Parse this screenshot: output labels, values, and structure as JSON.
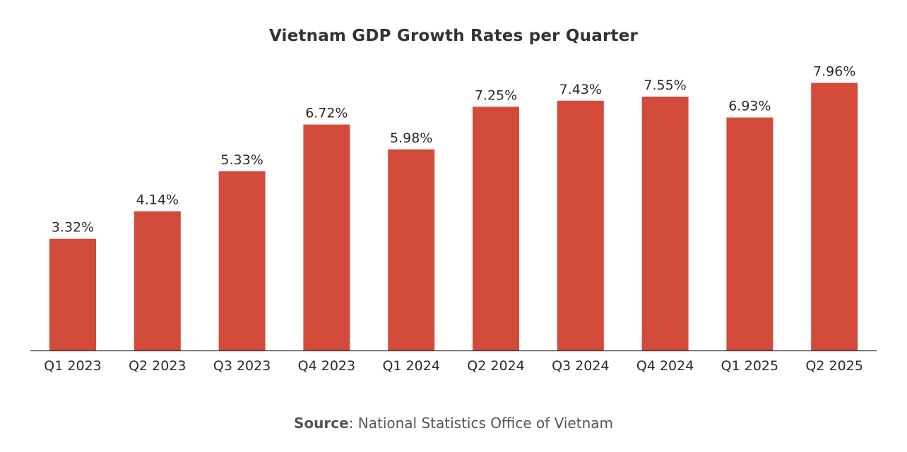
{
  "chart_data": {
    "type": "bar",
    "title": "Vietnam GDP Growth Rates per Quarter",
    "categories": [
      "Q1 2023",
      "Q2 2023",
      "Q3 2023",
      "Q4 2023",
      "Q1 2024",
      "Q2 2024",
      "Q3 2024",
      "Q4 2024",
      "Q1 2025",
      "Q2 2025"
    ],
    "values": [
      3.32,
      4.14,
      5.33,
      6.72,
      5.98,
      7.25,
      7.43,
      7.55,
      6.93,
      7.96
    ],
    "value_labels": [
      "3.32%",
      "4.14%",
      "5.33%",
      "6.72%",
      "5.98%",
      "7.25%",
      "7.43%",
      "7.55%",
      "6.93%",
      "7.96%"
    ],
    "xlabel": "",
    "ylabel": "",
    "ylim": [
      0,
      8.6
    ],
    "grid": false,
    "bar_color": "#d24b3a"
  },
  "source": {
    "label": "Source",
    "text": ": National Statistics Office of Vietnam"
  }
}
